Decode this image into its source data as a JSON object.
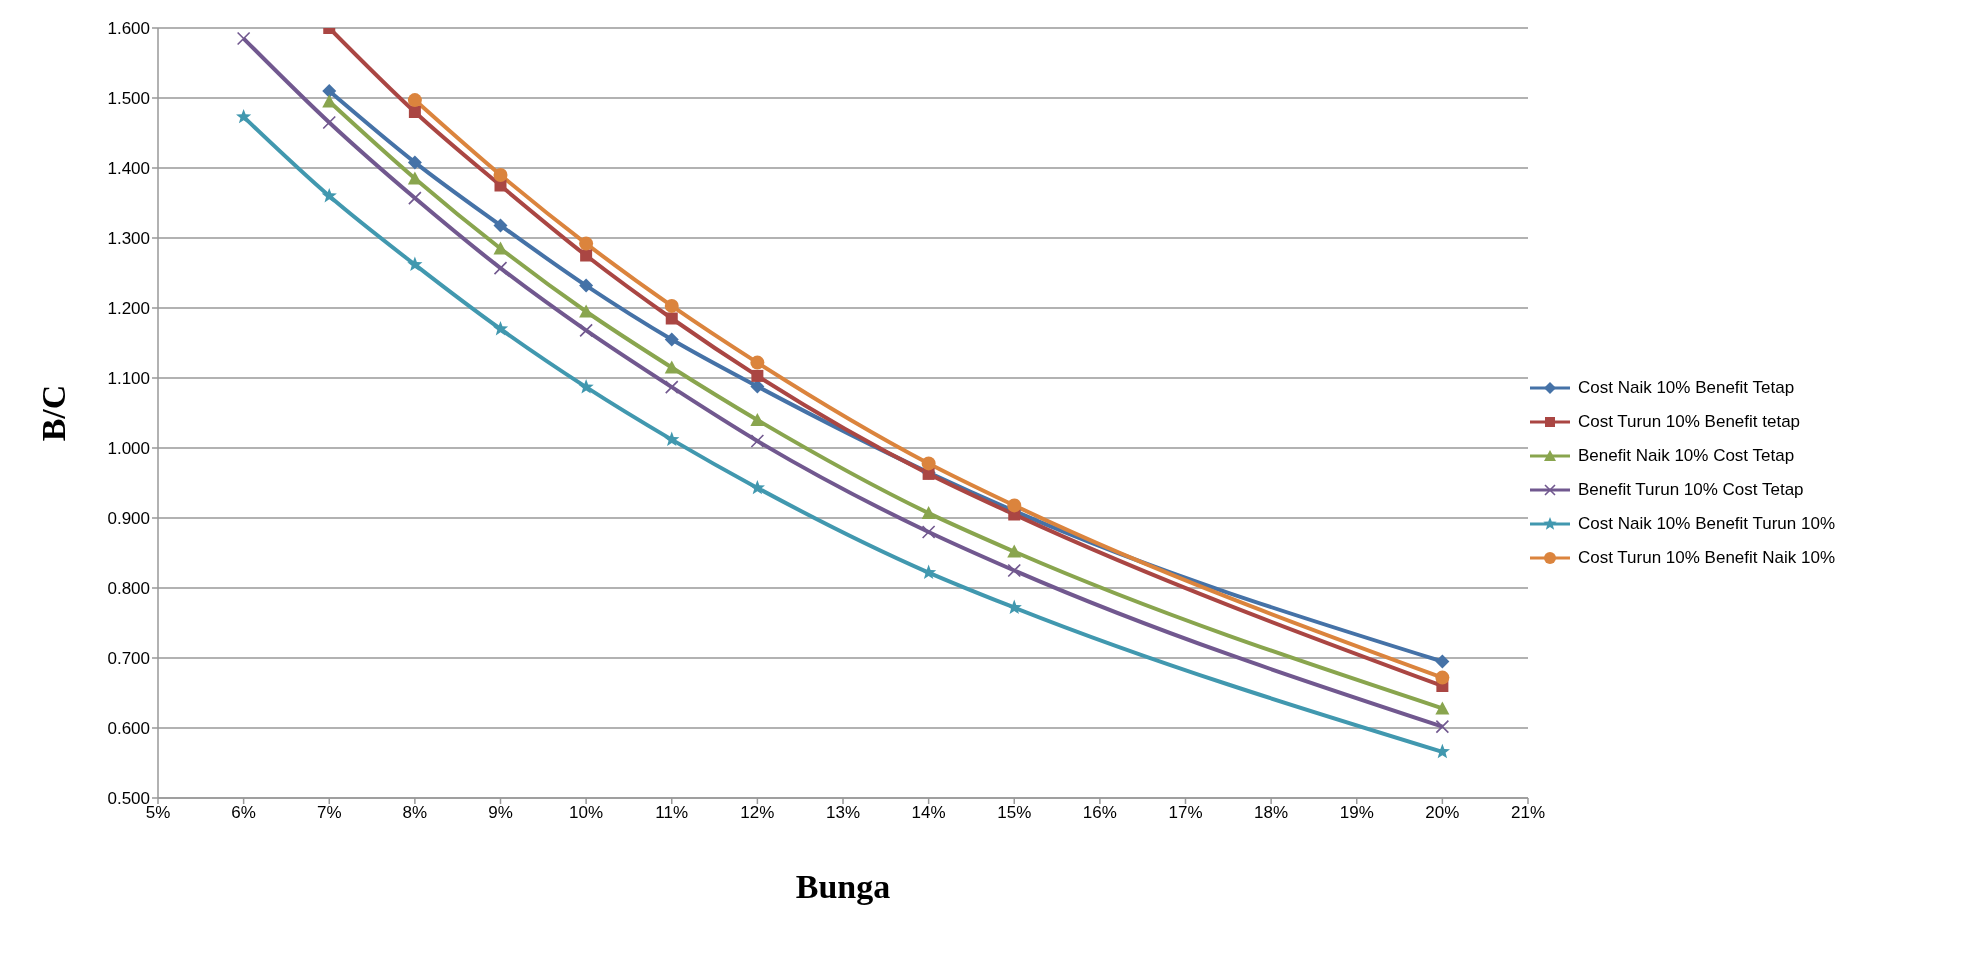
{
  "chart_data": {
    "type": "line",
    "xlabel": "Bunga",
    "ylabel": "B/C",
    "x": [
      6,
      7,
      8,
      9,
      10,
      11,
      12,
      14,
      15,
      20
    ],
    "xlim": [
      5,
      21
    ],
    "xticks": [
      {
        "value": 5,
        "label": "5%"
      },
      {
        "value": 6,
        "label": "6%"
      },
      {
        "value": 7,
        "label": "7%"
      },
      {
        "value": 8,
        "label": "8%"
      },
      {
        "value": 9,
        "label": "9%"
      },
      {
        "value": 10,
        "label": "10%"
      },
      {
        "value": 11,
        "label": "11%"
      },
      {
        "value": 12,
        "label": "12%"
      },
      {
        "value": 13,
        "label": "13%"
      },
      {
        "value": 14,
        "label": "14%"
      },
      {
        "value": 15,
        "label": "15%"
      },
      {
        "value": 16,
        "label": "16%"
      },
      {
        "value": 17,
        "label": "17%"
      },
      {
        "value": 18,
        "label": "18%"
      },
      {
        "value": 19,
        "label": "19%"
      },
      {
        "value": 20,
        "label": "20%"
      },
      {
        "value": 21,
        "label": "21%"
      }
    ],
    "ylim": [
      0.5,
      1.6
    ],
    "yticks": [
      {
        "value": 0.5,
        "label": "0.500"
      },
      {
        "value": 0.6,
        "label": "0.600"
      },
      {
        "value": 0.7,
        "label": "0.700"
      },
      {
        "value": 0.8,
        "label": "0.800"
      },
      {
        "value": 0.9,
        "label": "0.900"
      },
      {
        "value": 1.0,
        "label": "1.000"
      },
      {
        "value": 1.1,
        "label": "1.100"
      },
      {
        "value": 1.2,
        "label": "1.200"
      },
      {
        "value": 1.3,
        "label": "1.300"
      },
      {
        "value": 1.4,
        "label": "1.400"
      },
      {
        "value": 1.5,
        "label": "1.500"
      },
      {
        "value": 1.6,
        "label": "1.600"
      }
    ],
    "grid": "y",
    "legend": "right",
    "line_style": "solid",
    "series": [
      {
        "name": "Cost Naik 10% Benefit Tetap",
        "color": "#4572a7",
        "marker": "diamond",
        "values": [
          null,
          1.51,
          1.408,
          1.318,
          1.232,
          1.155,
          1.088,
          0.965,
          0.91,
          0.695
        ]
      },
      {
        "name": "Cost Turun 10% Benefit tetap",
        "color": "#aa4643",
        "marker": "square",
        "values": [
          null,
          1.6,
          1.48,
          1.375,
          1.275,
          1.185,
          1.103,
          0.963,
          0.905,
          0.66
        ]
      },
      {
        "name": "Benefit Naik 10% Cost Tetap",
        "color": "#89a54e",
        "marker": "triangle",
        "values": [
          null,
          1.495,
          1.385,
          1.285,
          1.195,
          1.115,
          1.04,
          0.907,
          0.852,
          0.628
        ]
      },
      {
        "name": "Benefit Turun 10% Cost Tetap",
        "color": "#71588f",
        "marker": "cross",
        "values": [
          1.585,
          1.465,
          1.357,
          1.257,
          1.168,
          1.087,
          1.01,
          0.88,
          0.825,
          0.602
        ]
      },
      {
        "name": "Cost Naik 10% Benefit Turun 10%",
        "color": "#4198af",
        "marker": "star",
        "values": [
          1.473,
          1.36,
          1.262,
          1.17,
          1.087,
          1.012,
          0.943,
          0.822,
          0.772,
          0.566
        ]
      },
      {
        "name": "Cost Turun 10% Benefit Naik 10%",
        "color": "#db843d",
        "marker": "circle",
        "values": [
          null,
          null,
          1.497,
          1.39,
          1.292,
          1.203,
          1.122,
          0.978,
          0.918,
          0.672
        ]
      }
    ]
  }
}
